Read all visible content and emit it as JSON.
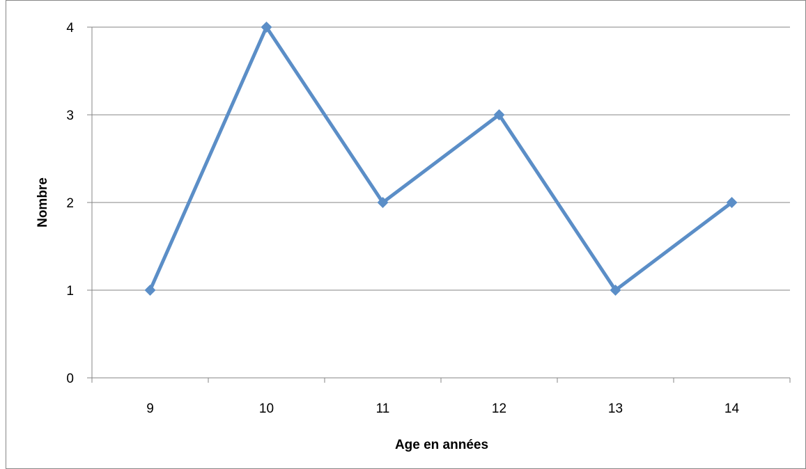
{
  "chart_data": {
    "type": "line",
    "title": "",
    "xlabel": "Age en années",
    "ylabel": "Nombre",
    "categories": [
      "9",
      "10",
      "11",
      "12",
      "13",
      "14"
    ],
    "series": [
      {
        "values": [
          1,
          4,
          2,
          3,
          1,
          2
        ],
        "color": "#5b8ec7",
        "marker": "diamond"
      }
    ],
    "ylim": [
      0,
      4
    ],
    "yticks": [
      "0",
      "1",
      "2",
      "3",
      "4"
    ],
    "grid": true,
    "legend": "none"
  }
}
